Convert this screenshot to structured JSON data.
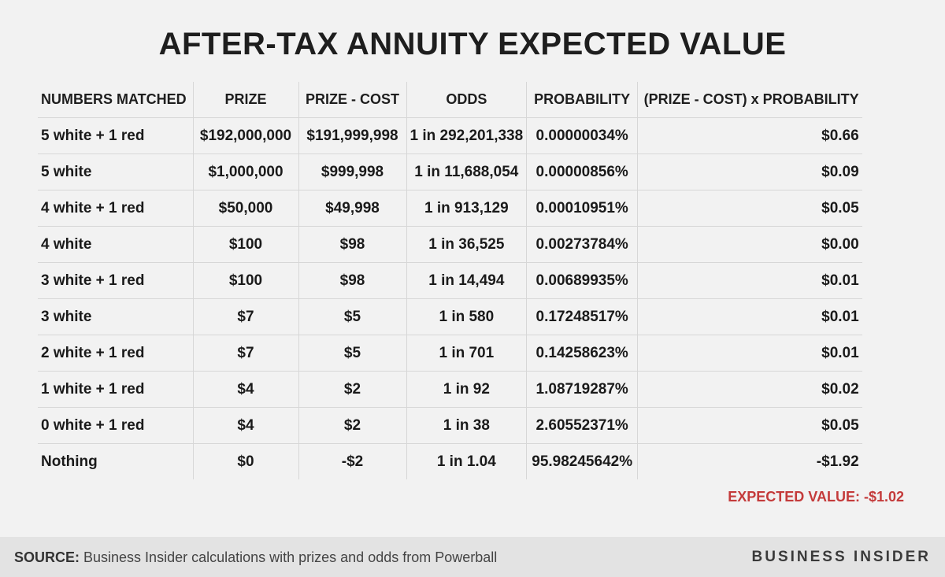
{
  "title": "AFTER-TAX ANNUITY EXPECTED VALUE",
  "chart_data": {
    "type": "table",
    "columns": [
      "NUMBERS MATCHED",
      "PRIZE",
      "PRIZE - COST",
      "ODDS",
      "PROBABILITY",
      "(PRIZE - COST) x PROBABILITY"
    ],
    "rows": [
      [
        "5 white + 1 red",
        "$192,000,000",
        "$191,999,998",
        "1 in 292,201,338",
        "0.00000034%",
        "$0.66"
      ],
      [
        "5 white",
        "$1,000,000",
        "$999,998",
        "1 in 11,688,054",
        "0.00000856%",
        "$0.09"
      ],
      [
        "4 white + 1 red",
        "$50,000",
        "$49,998",
        "1 in 913,129",
        "0.00010951%",
        "$0.05"
      ],
      [
        "4 white",
        "$100",
        "$98",
        "1 in 36,525",
        "0.00273784%",
        "$0.00"
      ],
      [
        "3 white + 1 red",
        "$100",
        "$98",
        "1 in 14,494",
        "0.00689935%",
        "$0.01"
      ],
      [
        "3 white",
        "$7",
        "$5",
        "1 in 580",
        "0.17248517%",
        "$0.01"
      ],
      [
        "2 white + 1 red",
        "$7",
        "$5",
        "1 in 701",
        "0.14258623%",
        "$0.01"
      ],
      [
        "1 white + 1 red",
        "$4",
        "$2",
        "1 in 92",
        "1.08719287%",
        "$0.02"
      ],
      [
        "0 white + 1 red",
        "$4",
        "$2",
        "1 in 38",
        "2.60552371%",
        "$0.05"
      ],
      [
        "Nothing",
        "$0",
        "-$2",
        "1 in 1.04",
        "95.98245642%",
        "-$1.92"
      ]
    ]
  },
  "expected_value": "EXPECTED VALUE: -$1.02",
  "expected_value_color": "#c43b3b",
  "footer": {
    "source_label": "SOURCE:",
    "source_text": " Business Insider calculations with prizes and odds from Powerball",
    "brand": "BUSINESS INSIDER"
  }
}
